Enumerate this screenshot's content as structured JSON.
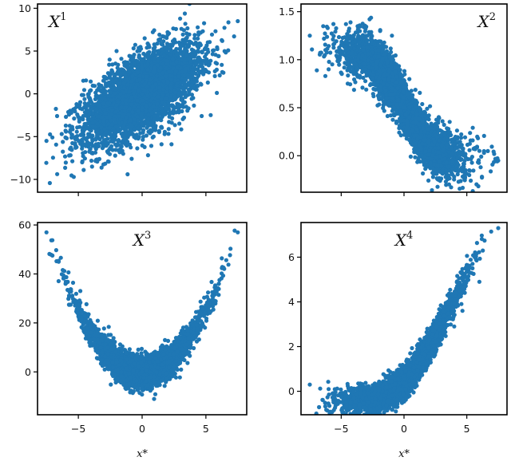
{
  "chart_data": [
    {
      "type": "scatter",
      "title": "X",
      "title_superscript": "1",
      "title_position": "top-left",
      "xlim": [
        -8.2,
        8.2
      ],
      "ylim": [
        -11.5,
        10.5
      ],
      "xticks": [
        -5,
        0,
        5
      ],
      "yticks": [
        -10,
        -5,
        0,
        5,
        10
      ],
      "xticklabels_shown": false,
      "grid": false,
      "color": "#1f77b4",
      "series": [
        {
          "x": [
            -7.5,
            -6.0,
            -4.0,
            -2.0,
            0.0,
            2.0,
            4.0,
            6.0,
            7.5
          ],
          "y": [
            -5.5,
            -4.3,
            -3.0,
            -1.3,
            0.0,
            1.3,
            3.0,
            4.4,
            8.5
          ]
        }
      ],
      "xlabel": "",
      "ylabel": ""
    },
    {
      "type": "scatter",
      "title": "X",
      "title_superscript": "2",
      "title_position": "top-right",
      "xlim": [
        -8.2,
        8.2
      ],
      "ylim": [
        -0.38,
        1.58
      ],
      "xticks": [
        -5,
        0,
        5
      ],
      "yticks": [
        0.0,
        0.5,
        1.0,
        1.5
      ],
      "xticklabels_shown": false,
      "grid": false,
      "color": "#1f77b4",
      "series": [
        {
          "x": [
            -7.5,
            -6.0,
            -4.0,
            -2.0,
            0.0,
            2.0,
            4.0,
            6.0,
            7.5
          ],
          "y": [
            1.25,
            0.9,
            0.88,
            0.8,
            0.5,
            0.2,
            0.12,
            0.05,
            -0.05
          ]
        }
      ],
      "xlabel": "",
      "ylabel": ""
    },
    {
      "type": "scatter",
      "title": "X",
      "title_superscript": "3",
      "title_position": "top-center",
      "xlim": [
        -8.2,
        8.2
      ],
      "ylim": [
        -17.5,
        61.0
      ],
      "xticks": [
        -5,
        0,
        5
      ],
      "yticks": [
        0,
        20,
        40,
        60
      ],
      "xticklabels": [
        "−5",
        "0",
        "5"
      ],
      "grid": false,
      "color": "#1f77b4",
      "series": [
        {
          "x": [
            -7.5,
            -6.0,
            -4.0,
            -2.0,
            0.0,
            2.0,
            4.0,
            6.0,
            7.5
          ],
          "y": [
            57,
            36,
            16,
            4,
            0,
            4,
            16,
            36,
            57
          ]
        }
      ],
      "xlabel": "x*",
      "ylabel": ""
    },
    {
      "type": "scatter",
      "title": "X",
      "title_superscript": "4",
      "title_position": "top-center",
      "xlim": [
        -8.2,
        8.2
      ],
      "ylim": [
        -1.05,
        7.55
      ],
      "xticks": [
        -5,
        0,
        5
      ],
      "yticks": [
        0,
        2,
        4,
        6
      ],
      "xticklabels": [
        "−5",
        "0",
        "5"
      ],
      "grid": false,
      "color": "#1f77b4",
      "series": [
        {
          "x": [
            -7.5,
            -6.0,
            -4.0,
            -2.0,
            0.0,
            2.0,
            4.0,
            6.0,
            7.5
          ],
          "y": [
            0.3,
            0.1,
            0.0,
            0.05,
            0.35,
            1.3,
            2.9,
            4.9,
            7.3
          ]
        }
      ],
      "xlabel": "x*",
      "ylabel": ""
    }
  ],
  "layout_panels": [
    "p1",
    "p2",
    "p3",
    "p4"
  ]
}
